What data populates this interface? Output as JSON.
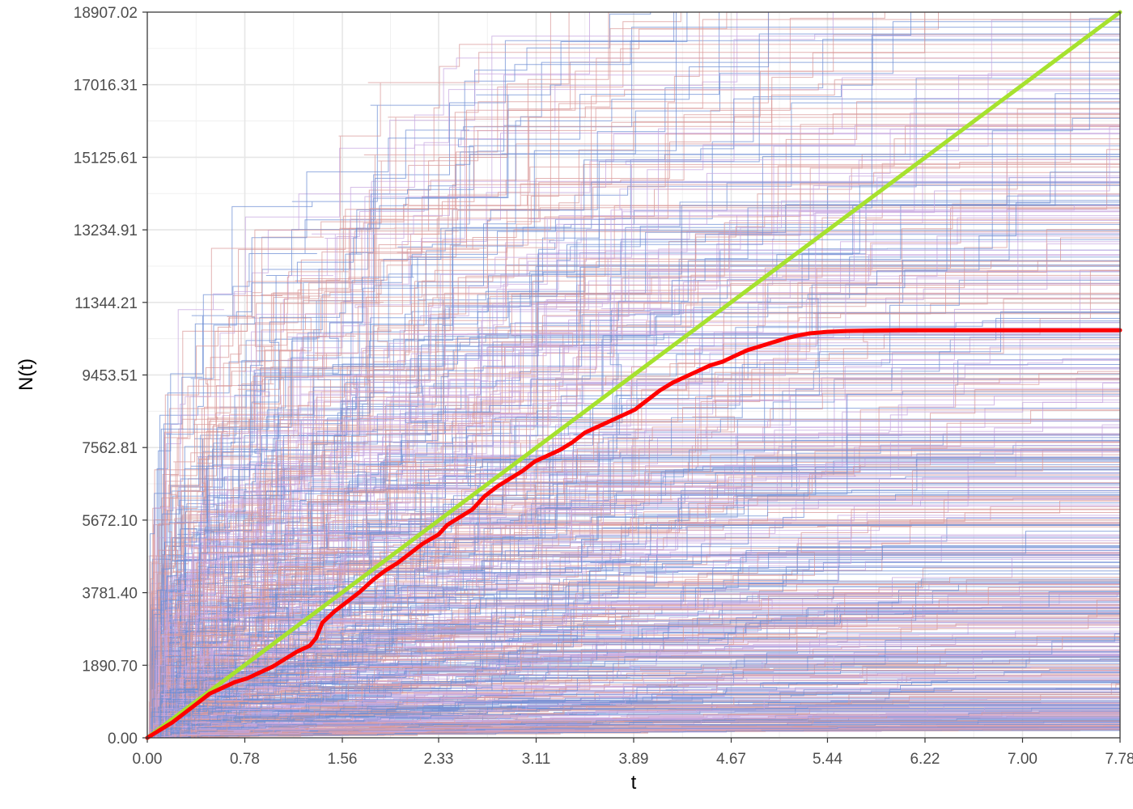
{
  "chart_data": {
    "type": "line",
    "title": "",
    "xlabel": "t",
    "ylabel": "N(t)",
    "xlim": [
      0,
      7.78
    ],
    "ylim": [
      0,
      18907.02
    ],
    "x_ticks": [
      "0.00",
      "0.78",
      "1.56",
      "2.33",
      "3.11",
      "3.89",
      "4.67",
      "5.44",
      "6.22",
      "7.00",
      "7.78"
    ],
    "x_tick_values": [
      0,
      0.78,
      1.56,
      2.33,
      3.11,
      3.89,
      4.67,
      5.44,
      6.22,
      7.0,
      7.78
    ],
    "y_ticks": [
      "0.00",
      "1890.70",
      "3781.40",
      "5672.10",
      "7562.81",
      "9453.51",
      "11344.21",
      "13234.91",
      "15125.61",
      "17016.31",
      "18907.02"
    ],
    "y_tick_values": [
      0,
      1890.7,
      3781.4,
      5672.1,
      7562.81,
      9453.51,
      11344.21,
      13234.91,
      15125.61,
      17016.31,
      18907.02
    ],
    "grid": true,
    "legend": "none",
    "background_paths": {
      "count": 600,
      "style": "step",
      "colors": [
        "#6f8fd4",
        "#d99a9a",
        "#c7a8e0"
      ]
    },
    "series": [
      {
        "color": "#ff0000",
        "style": "line",
        "x": [
          0,
          0.1,
          0.2,
          0.3,
          0.4,
          0.5,
          0.6,
          0.7,
          0.8,
          0.9,
          1.0,
          1.1,
          1.2,
          1.3,
          1.35,
          1.4,
          1.5,
          1.6,
          1.7,
          1.8,
          1.9,
          2.0,
          2.1,
          2.2,
          2.33,
          2.4,
          2.5,
          2.6,
          2.7,
          2.8,
          2.9,
          3.0,
          3.1,
          3.2,
          3.3,
          3.4,
          3.5,
          3.6,
          3.7,
          3.8,
          3.9,
          4.0,
          4.1,
          4.2,
          4.3,
          4.4,
          4.5,
          4.6,
          4.7,
          4.8,
          4.9,
          5.0,
          5.1,
          5.2,
          5.3,
          5.44,
          5.6,
          5.8,
          6.0,
          6.22,
          6.5,
          7.0,
          7.5,
          7.78
        ],
        "y": [
          0,
          200,
          400,
          650,
          900,
          1150,
          1300,
          1450,
          1550,
          1700,
          1850,
          2050,
          2250,
          2400,
          2600,
          3000,
          3300,
          3550,
          3800,
          4100,
          4350,
          4550,
          4800,
          5050,
          5300,
          5550,
          5750,
          5950,
          6300,
          6550,
          6750,
          6950,
          7200,
          7350,
          7500,
          7700,
          7950,
          8100,
          8250,
          8400,
          8550,
          8800,
          9050,
          9250,
          9400,
          9550,
          9700,
          9800,
          9950,
          10100,
          10200,
          10300,
          10400,
          10480,
          10540,
          10580,
          10600,
          10610,
          10620,
          10620,
          10620,
          10620,
          10620,
          10620
        ]
      },
      {
        "color": "#a6e22e",
        "style": "line",
        "x": [
          0,
          7.78
        ],
        "y": [
          0,
          18907.02
        ]
      }
    ]
  }
}
